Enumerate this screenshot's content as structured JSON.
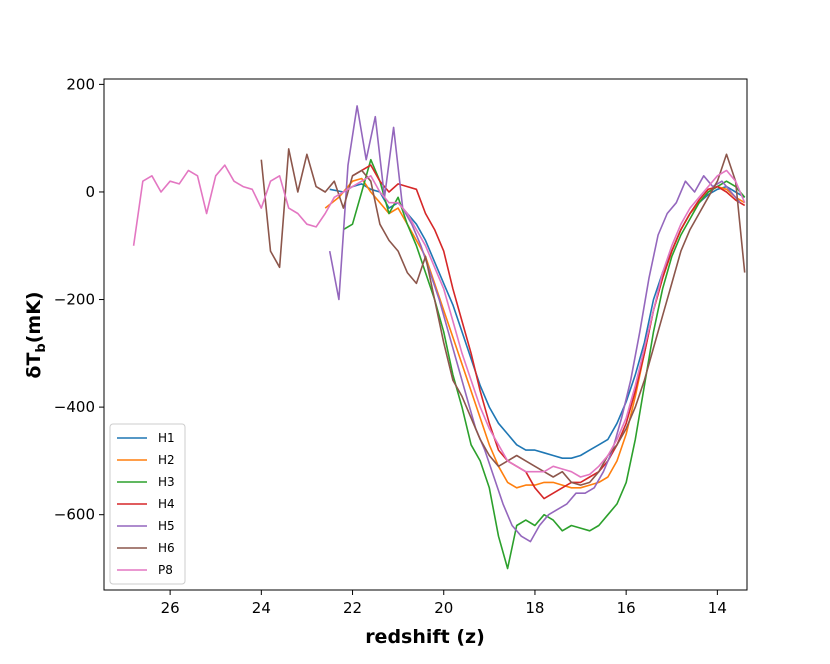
{
  "chart_data": {
    "type": "line",
    "title": "",
    "xlabel": "redshift (z)",
    "ylabel_main": "δT",
    "ylabel_sub": "b",
    "ylabel_unit": "(mK)",
    "xlim": [
      27.45,
      13.35
    ],
    "ylim": [
      -740,
      210
    ],
    "x_inverted": true,
    "xticks": [
      26,
      24,
      22,
      20,
      18,
      16,
      14
    ],
    "yticks": [
      200,
      0,
      -200,
      -400,
      -600
    ],
    "ytick_labels": [
      "200",
      "0",
      "−200",
      "−400",
      "−600"
    ],
    "grid": false,
    "legend_position": "lower-left",
    "series": [
      {
        "name": "H1",
        "color": "#1f77b4",
        "x": [
          22.5,
          22.2,
          22.0,
          21.8,
          21.6,
          21.4,
          21.2,
          21.0,
          20.8,
          20.6,
          20.4,
          20.2,
          20.0,
          19.8,
          19.6,
          19.4,
          19.2,
          19.0,
          18.8,
          18.6,
          18.4,
          18.2,
          18.0,
          17.8,
          17.6,
          17.4,
          17.2,
          17.0,
          16.8,
          16.6,
          16.4,
          16.2,
          16.0,
          15.8,
          15.6,
          15.4,
          15.2,
          15.0,
          14.8,
          14.6,
          14.4,
          14.2,
          14.0,
          13.8,
          13.6,
          13.4
        ],
        "y": [
          5,
          0,
          10,
          15,
          5,
          0,
          -30,
          -20,
          -40,
          -60,
          -90,
          -130,
          -170,
          -210,
          -260,
          -310,
          -360,
          -400,
          -430,
          -450,
          -470,
          -480,
          -480,
          -485,
          -490,
          -495,
          -495,
          -490,
          -480,
          -470,
          -460,
          -430,
          -390,
          -340,
          -280,
          -200,
          -150,
          -110,
          -70,
          -40,
          -20,
          -5,
          5,
          10,
          0,
          -10
        ]
      },
      {
        "name": "H2",
        "color": "#ff7f0e",
        "x": [
          22.6,
          22.3,
          22.0,
          21.8,
          21.6,
          21.4,
          21.2,
          21.0,
          20.8,
          20.6,
          20.4,
          20.2,
          20.0,
          19.8,
          19.6,
          19.4,
          19.2,
          19.0,
          18.8,
          18.6,
          18.4,
          18.2,
          18.0,
          17.8,
          17.6,
          17.4,
          17.2,
          17.0,
          16.8,
          16.6,
          16.4,
          16.2,
          16.0,
          15.8,
          15.6,
          15.4,
          15.2,
          15.0,
          14.8,
          14.6,
          14.4,
          14.2,
          14.0,
          13.8,
          13.6,
          13.4
        ],
        "y": [
          -30,
          -10,
          20,
          25,
          0,
          -20,
          -40,
          -30,
          -60,
          -90,
          -120,
          -170,
          -220,
          -270,
          -320,
          -370,
          -420,
          -470,
          -510,
          -540,
          -550,
          -545,
          -545,
          -540,
          -540,
          -545,
          -550,
          -550,
          -545,
          -540,
          -530,
          -500,
          -450,
          -380,
          -300,
          -220,
          -160,
          -110,
          -70,
          -40,
          -20,
          0,
          10,
          5,
          -10,
          -20
        ]
      },
      {
        "name": "H3",
        "color": "#2ca02c",
        "x": [
          22.2,
          22.0,
          21.8,
          21.6,
          21.4,
          21.2,
          21.0,
          20.8,
          20.6,
          20.4,
          20.2,
          20.0,
          19.8,
          19.6,
          19.4,
          19.2,
          19.0,
          18.8,
          18.6,
          18.4,
          18.2,
          18.0,
          17.8,
          17.6,
          17.4,
          17.2,
          17.0,
          16.8,
          16.6,
          16.4,
          16.2,
          16.0,
          15.8,
          15.6,
          15.4,
          15.2,
          15.0,
          14.8,
          14.6,
          14.4,
          14.2,
          14.0,
          13.8,
          13.6,
          13.4
        ],
        "y": [
          -70,
          -60,
          0,
          60,
          20,
          -40,
          -10,
          -60,
          -100,
          -150,
          -200,
          -260,
          -340,
          -400,
          -470,
          -500,
          -550,
          -640,
          -700,
          -620,
          -610,
          -620,
          -600,
          -610,
          -630,
          -620,
          -625,
          -630,
          -620,
          -600,
          -580,
          -540,
          -460,
          -360,
          -260,
          -180,
          -120,
          -80,
          -50,
          -20,
          0,
          10,
          20,
          10,
          -10
        ]
      },
      {
        "name": "H4",
        "color": "#d62728",
        "x": [
          22.0,
          21.8,
          21.6,
          21.4,
          21.2,
          21.0,
          20.8,
          20.6,
          20.4,
          20.2,
          20.0,
          19.8,
          19.6,
          19.4,
          19.2,
          19.0,
          18.8,
          18.6,
          18.4,
          18.2,
          18.0,
          17.8,
          17.6,
          17.4,
          17.2,
          17.0,
          16.8,
          16.6,
          16.4,
          16.2,
          16.0,
          15.8,
          15.6,
          15.4,
          15.2,
          15.0,
          14.8,
          14.6,
          14.4,
          14.2,
          14.0,
          13.8,
          13.6,
          13.4
        ],
        "y": [
          30,
          40,
          50,
          20,
          0,
          15,
          10,
          5,
          -40,
          -70,
          -110,
          -180,
          -240,
          -300,
          -370,
          -430,
          -480,
          -500,
          -510,
          -520,
          -550,
          -570,
          -560,
          -550,
          -540,
          -540,
          -530,
          -520,
          -500,
          -470,
          -430,
          -370,
          -300,
          -220,
          -160,
          -110,
          -70,
          -40,
          -15,
          5,
          10,
          0,
          -15,
          -25
        ]
      },
      {
        "name": "H5",
        "color": "#9467bd",
        "x": [
          22.5,
          22.3,
          22.1,
          21.9,
          21.7,
          21.5,
          21.3,
          21.1,
          20.9,
          20.7,
          20.5,
          20.3,
          20.1,
          19.9,
          19.7,
          19.5,
          19.3,
          19.1,
          18.9,
          18.7,
          18.5,
          18.3,
          18.1,
          17.9,
          17.7,
          17.5,
          17.3,
          17.1,
          16.9,
          16.7,
          16.5,
          16.3,
          16.1,
          15.9,
          15.7,
          15.5,
          15.3,
          15.1,
          14.9,
          14.7,
          14.5,
          14.3,
          14.1,
          13.9,
          13.7,
          13.5
        ],
        "y": [
          -110,
          -200,
          50,
          160,
          60,
          140,
          -10,
          120,
          -30,
          -60,
          -100,
          -150,
          -200,
          -260,
          -320,
          -380,
          -440,
          -480,
          -530,
          -580,
          -620,
          -640,
          -650,
          -620,
          -600,
          -590,
          -580,
          -560,
          -560,
          -550,
          -520,
          -480,
          -420,
          -350,
          -260,
          -160,
          -80,
          -40,
          -20,
          20,
          0,
          30,
          10,
          20,
          0,
          -20
        ]
      },
      {
        "name": "H6",
        "color": "#8c564b",
        "x": [
          24.0,
          23.8,
          23.6,
          23.4,
          23.2,
          23.0,
          22.8,
          22.6,
          22.4,
          22.2,
          22.0,
          21.8,
          21.6,
          21.4,
          21.2,
          21.0,
          20.8,
          20.6,
          20.4,
          20.2,
          20.0,
          19.8,
          19.6,
          19.4,
          19.2,
          19.0,
          18.8,
          18.6,
          18.4,
          18.2,
          18.0,
          17.8,
          17.6,
          17.4,
          17.2,
          17.0,
          16.8,
          16.6,
          16.4,
          16.2,
          16.0,
          15.8,
          15.6,
          15.4,
          15.2,
          15.0,
          14.8,
          14.6,
          14.4,
          14.2,
          14.0,
          13.8,
          13.6,
          13.4
        ],
        "y": [
          60,
          -110,
          -140,
          80,
          0,
          70,
          10,
          0,
          20,
          -30,
          30,
          40,
          20,
          -60,
          -90,
          -110,
          -150,
          -170,
          -120,
          -200,
          -280,
          -350,
          -380,
          -420,
          -460,
          -490,
          -510,
          -500,
          -490,
          -500,
          -510,
          -520,
          -530,
          -520,
          -540,
          -545,
          -540,
          -520,
          -490,
          -470,
          -440,
          -400,
          -350,
          -290,
          -230,
          -170,
          -110,
          -70,
          -40,
          -10,
          20,
          70,
          20,
          -150
        ]
      },
      {
        "name": "P8",
        "color": "#e377c2",
        "x": [
          26.8,
          26.6,
          26.4,
          26.2,
          26.0,
          25.8,
          25.6,
          25.4,
          25.2,
          25.0,
          24.8,
          24.6,
          24.4,
          24.2,
          24.0,
          23.8,
          23.6,
          23.4,
          23.2,
          23.0,
          22.8,
          22.6,
          22.4,
          22.2,
          22.0,
          21.8,
          21.6,
          21.4,
          21.2,
          21.0,
          20.8,
          20.6,
          20.4,
          20.2,
          20.0,
          19.8,
          19.6,
          19.4,
          19.2,
          19.0,
          18.8,
          18.6,
          18.4,
          18.2,
          18.0,
          17.8,
          17.6,
          17.4,
          17.2,
          17.0,
          16.8,
          16.6,
          16.4,
          16.2,
          16.0,
          15.8,
          15.6,
          15.4,
          15.2,
          15.0,
          14.8,
          14.6,
          14.4,
          14.2,
          14.0,
          13.8,
          13.6,
          13.4
        ],
        "y": [
          -100,
          20,
          30,
          0,
          20,
          15,
          40,
          30,
          -40,
          30,
          50,
          20,
          10,
          5,
          -30,
          20,
          30,
          -30,
          -40,
          -60,
          -65,
          -40,
          -10,
          0,
          10,
          20,
          30,
          0,
          -20,
          -20,
          -40,
          -70,
          -100,
          -140,
          -180,
          -240,
          -300,
          -350,
          -400,
          -440,
          -470,
          -500,
          -510,
          -520,
          -520,
          -520,
          -510,
          -515,
          -520,
          -530,
          -525,
          -510,
          -490,
          -460,
          -420,
          -360,
          -290,
          -220,
          -150,
          -100,
          -60,
          -30,
          -10,
          10,
          30,
          40,
          20,
          -20
        ]
      }
    ]
  }
}
